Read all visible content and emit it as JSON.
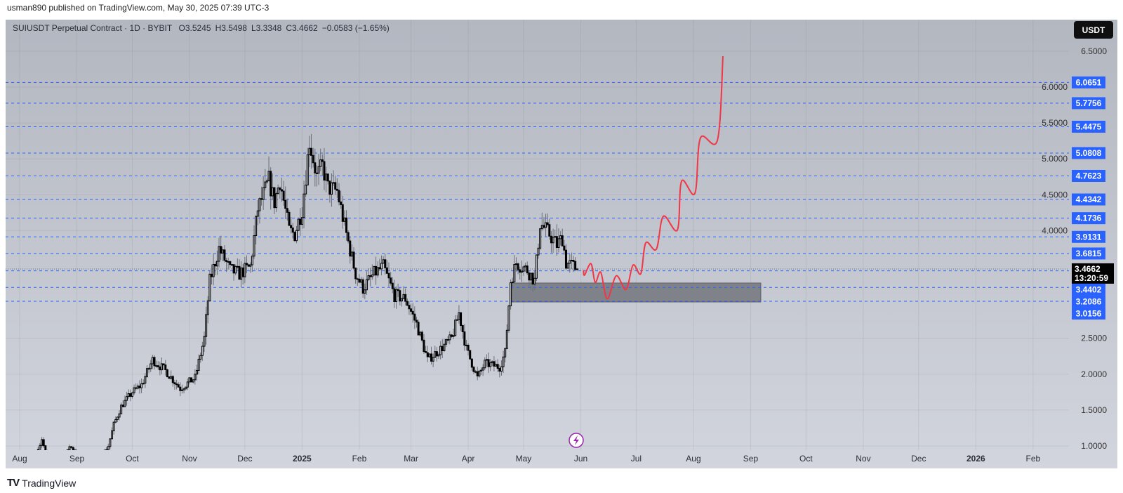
{
  "header": {
    "published": "usman890 published on TradingView.com, May 30, 2025 07:39 UTC-3"
  },
  "legend": {
    "symbol": "SUIUSDT Perpetual Contract · 1D · BYBIT",
    "open": "O3.5245",
    "high": "H3.5498",
    "low": "L3.3348",
    "close": "C3.4662",
    "change": "−0.0583 (−1.65%)"
  },
  "currency_button": "USDT",
  "footer": {
    "logo_text": "TradingView"
  },
  "colors": {
    "level": "#2962ff",
    "projection": "#f23645",
    "zone": "#808289",
    "alert": "#9c27b0"
  },
  "chart_data": {
    "type": "candlestick",
    "title": "SUIUSDT Perpetual Contract · 1D · BYBIT",
    "start_date": "2024-08-01",
    "ylim": [
      1.0,
      6.5
    ],
    "y_ticks": [
      "6.5000",
      "6.0000",
      "5.5000",
      "5.0000",
      "4.5000",
      "4.0000",
      "2.5000",
      "2.0000",
      "1.5000",
      "1.0000"
    ],
    "x_ticks": [
      {
        "label": "Aug",
        "date": "2024-08-01"
      },
      {
        "label": "Sep",
        "date": "2024-09-01"
      },
      {
        "label": "Oct",
        "date": "2024-10-01"
      },
      {
        "label": "Nov",
        "date": "2024-11-01"
      },
      {
        "label": "Dec",
        "date": "2024-12-01"
      },
      {
        "label": "2025",
        "date": "2025-01-01",
        "bold": true
      },
      {
        "label": "Feb",
        "date": "2025-02-01"
      },
      {
        "label": "Mar",
        "date": "2025-03-01"
      },
      {
        "label": "Apr",
        "date": "2025-04-01"
      },
      {
        "label": "May",
        "date": "2025-05-01"
      },
      {
        "label": "Jun",
        "date": "2025-06-01"
      },
      {
        "label": "Jul",
        "date": "2025-07-01"
      },
      {
        "label": "Aug",
        "date": "2025-08-01"
      },
      {
        "label": "Sep",
        "date": "2025-09-01"
      },
      {
        "label": "Oct",
        "date": "2025-10-01"
      },
      {
        "label": "Nov",
        "date": "2025-11-01"
      },
      {
        "label": "Dec",
        "date": "2025-12-01"
      },
      {
        "label": "2026",
        "date": "2026-01-01",
        "bold": true
      },
      {
        "label": "Feb",
        "date": "2026-02-01"
      }
    ],
    "price_levels": [
      "6.0651",
      "5.7756",
      "5.4475",
      "5.0808",
      "4.7623",
      "4.4342",
      "4.1736",
      "3.9131",
      "3.6815",
      "3.4402",
      "3.2086",
      "3.0156"
    ],
    "current_price": {
      "value": "3.4662",
      "countdown": "13:20:59"
    },
    "price_path_day_close": [
      [
        10,
        0.95
      ],
      [
        12,
        1.1
      ],
      [
        14,
        0.9
      ],
      [
        25,
        0.85
      ],
      [
        27,
        1.0
      ],
      [
        35,
        0.82
      ],
      [
        44,
        0.85
      ],
      [
        48,
        1.0
      ],
      [
        51,
        1.3
      ],
      [
        55,
        1.55
      ],
      [
        61,
        1.75
      ],
      [
        66,
        1.85
      ],
      [
        72,
        2.2
      ],
      [
        79,
        2.05
      ],
      [
        87,
        1.8
      ],
      [
        95,
        1.95
      ],
      [
        100,
        2.5
      ],
      [
        103,
        3.3
      ],
      [
        108,
        3.75
      ],
      [
        114,
        3.45
      ],
      [
        119,
        3.4
      ],
      [
        125,
        3.5
      ],
      [
        129,
        4.3
      ],
      [
        135,
        4.7
      ],
      [
        138,
        4.4
      ],
      [
        141,
        4.7
      ],
      [
        146,
        4.0
      ],
      [
        149,
        3.95
      ],
      [
        153,
        4.3
      ],
      [
        157,
        5.25
      ],
      [
        161,
        4.75
      ],
      [
        164,
        4.9
      ],
      [
        167,
        4.6
      ],
      [
        172,
        4.55
      ],
      [
        177,
        3.95
      ],
      [
        182,
        3.4
      ],
      [
        186,
        3.2
      ],
      [
        189,
        3.3
      ],
      [
        192,
        3.4
      ],
      [
        197,
        3.5
      ],
      [
        203,
        3.1
      ],
      [
        209,
        3.05
      ],
      [
        215,
        2.7
      ],
      [
        221,
        2.2
      ],
      [
        228,
        2.35
      ],
      [
        234,
        2.5
      ],
      [
        238,
        2.85
      ],
      [
        242,
        2.35
      ],
      [
        248,
        1.95
      ],
      [
        252,
        2.15
      ],
      [
        260,
        2.1
      ],
      [
        263,
        2.3
      ],
      [
        266,
        3.3
      ],
      [
        269,
        3.55
      ],
      [
        275,
        3.45
      ],
      [
        279,
        3.3
      ],
      [
        282,
        4.1
      ],
      [
        287,
        3.95
      ],
      [
        291,
        3.8
      ],
      [
        294,
        3.9
      ],
      [
        296,
        3.55
      ],
      [
        300,
        3.5
      ],
      [
        302,
        3.4662
      ]
    ],
    "projection_day_price": [
      [
        305.5,
        3.45
      ],
      [
        306,
        3.38
      ],
      [
        309.5,
        3.54
      ],
      [
        311.8,
        3.28
      ],
      [
        314.8,
        3.42
      ],
      [
        318.3,
        3.05
      ],
      [
        323.2,
        3.37
      ],
      [
        328.5,
        3.18
      ],
      [
        332.3,
        3.52
      ],
      [
        336.5,
        3.4
      ],
      [
        339.2,
        3.83
      ],
      [
        344.9,
        3.74
      ],
      [
        348.7,
        4.2
      ],
      [
        356.3,
        4.01
      ],
      [
        358.6,
        4.69
      ],
      [
        365.8,
        4.52
      ],
      [
        368.8,
        5.29
      ],
      [
        378,
        5.26
      ],
      [
        381,
        6.43
      ]
    ],
    "support_zone": {
      "from_day": 266.5,
      "to_day": 401.5,
      "low": 3.006,
      "high": 3.27
    }
  }
}
